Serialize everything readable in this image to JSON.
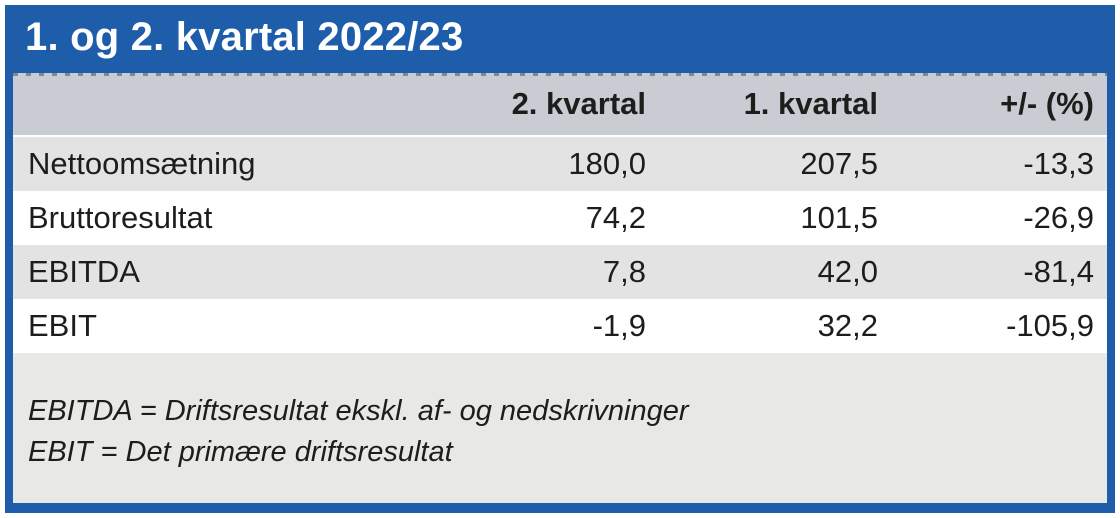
{
  "title": "1. og 2. kvartal 2022/23",
  "colors": {
    "accent_blue": "#1e5da9",
    "header_gray": "#c9cdd3",
    "row_alt_gray": "#e3e3e3",
    "footer_gray": "#e8e8e7",
    "title_text": "#ffffff",
    "body_text": "#1d1d1b"
  },
  "table": {
    "columns": {
      "label": "",
      "q2": "2. kvartal",
      "q1": "1. kvartal",
      "change": "+/- (%)"
    },
    "rows": [
      {
        "label": "Nettoomsætning",
        "q2": "180,0",
        "q1": "207,5",
        "change": "-13,3"
      },
      {
        "label": "Bruttoresultat",
        "q2": "74,2",
        "q1": "101,5",
        "change": "-26,9"
      },
      {
        "label": "EBITDA",
        "q2": "7,8",
        "q1": "42,0",
        "change": "-81,4"
      },
      {
        "label": "EBIT",
        "q2": "-1,9",
        "q1": "32,2",
        "change": "-105,9"
      }
    ]
  },
  "footnotes": [
    "EBITDA = Driftsresultat ekskl. af- og nedskrivninger",
    "EBIT = Det primære driftsresultat"
  ],
  "chart_data": {
    "type": "table",
    "title": "1. og 2. kvartal 2022/23",
    "columns": [
      "",
      "2. kvartal",
      "1. kvartal",
      "+/- (%)"
    ],
    "rows": [
      [
        "Nettoomsætning",
        180.0,
        207.5,
        -13.3
      ],
      [
        "Bruttoresultat",
        74.2,
        101.5,
        -26.9
      ],
      [
        "EBITDA",
        7.8,
        42.0,
        -81.4
      ],
      [
        "EBIT",
        -1.9,
        32.2,
        -105.9
      ]
    ],
    "notes": [
      "EBITDA = Driftsresultat ekskl. af- og nedskrivninger",
      "EBIT = Det primære driftsresultat"
    ],
    "layout": {
      "number_alignment": "right",
      "alternating_row_shading": true,
      "decimal_separator": ","
    }
  }
}
